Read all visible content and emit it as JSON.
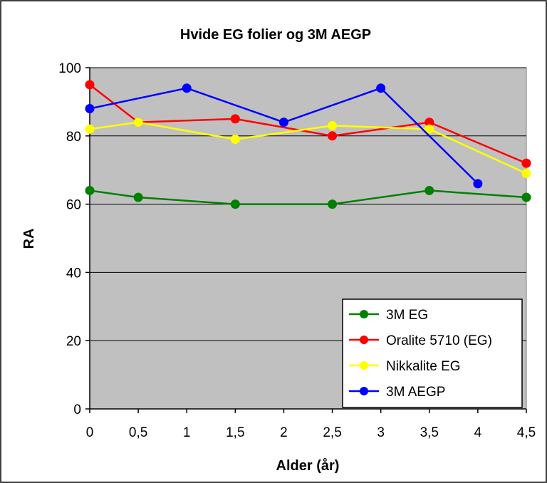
{
  "chart_data": {
    "type": "line",
    "title": "Hvide EG folier og 3M AEGP",
    "xlabel": "Alder (år)",
    "ylabel": "RA",
    "x": [
      "0",
      "0,5",
      "1",
      "1,5",
      "2",
      "2,5",
      "3",
      "3,5",
      "4",
      "4,5"
    ],
    "ylim": [
      0,
      100
    ],
    "yticks": [
      0,
      20,
      40,
      60,
      80,
      100
    ],
    "grid": "horizontal",
    "plot_background": "#c0c0c0",
    "legend_position": "bottom-right",
    "series": [
      {
        "name": "3M EG",
        "color": "#008000",
        "values": [
          64,
          62,
          null,
          60,
          null,
          60,
          null,
          64,
          null,
          62
        ]
      },
      {
        "name": "Oralite 5710 (EG)",
        "color": "#ff0000",
        "values": [
          95,
          84,
          null,
          85,
          null,
          80,
          null,
          84,
          null,
          72
        ]
      },
      {
        "name": "Nikkalite EG",
        "color": "#ffff00",
        "values": [
          82,
          84,
          null,
          79,
          null,
          83,
          null,
          82,
          null,
          69
        ]
      },
      {
        "name": "3M AEGP",
        "color": "#0000ff",
        "values": [
          88,
          null,
          94,
          null,
          84,
          null,
          94,
          null,
          66,
          null
        ]
      }
    ]
  }
}
